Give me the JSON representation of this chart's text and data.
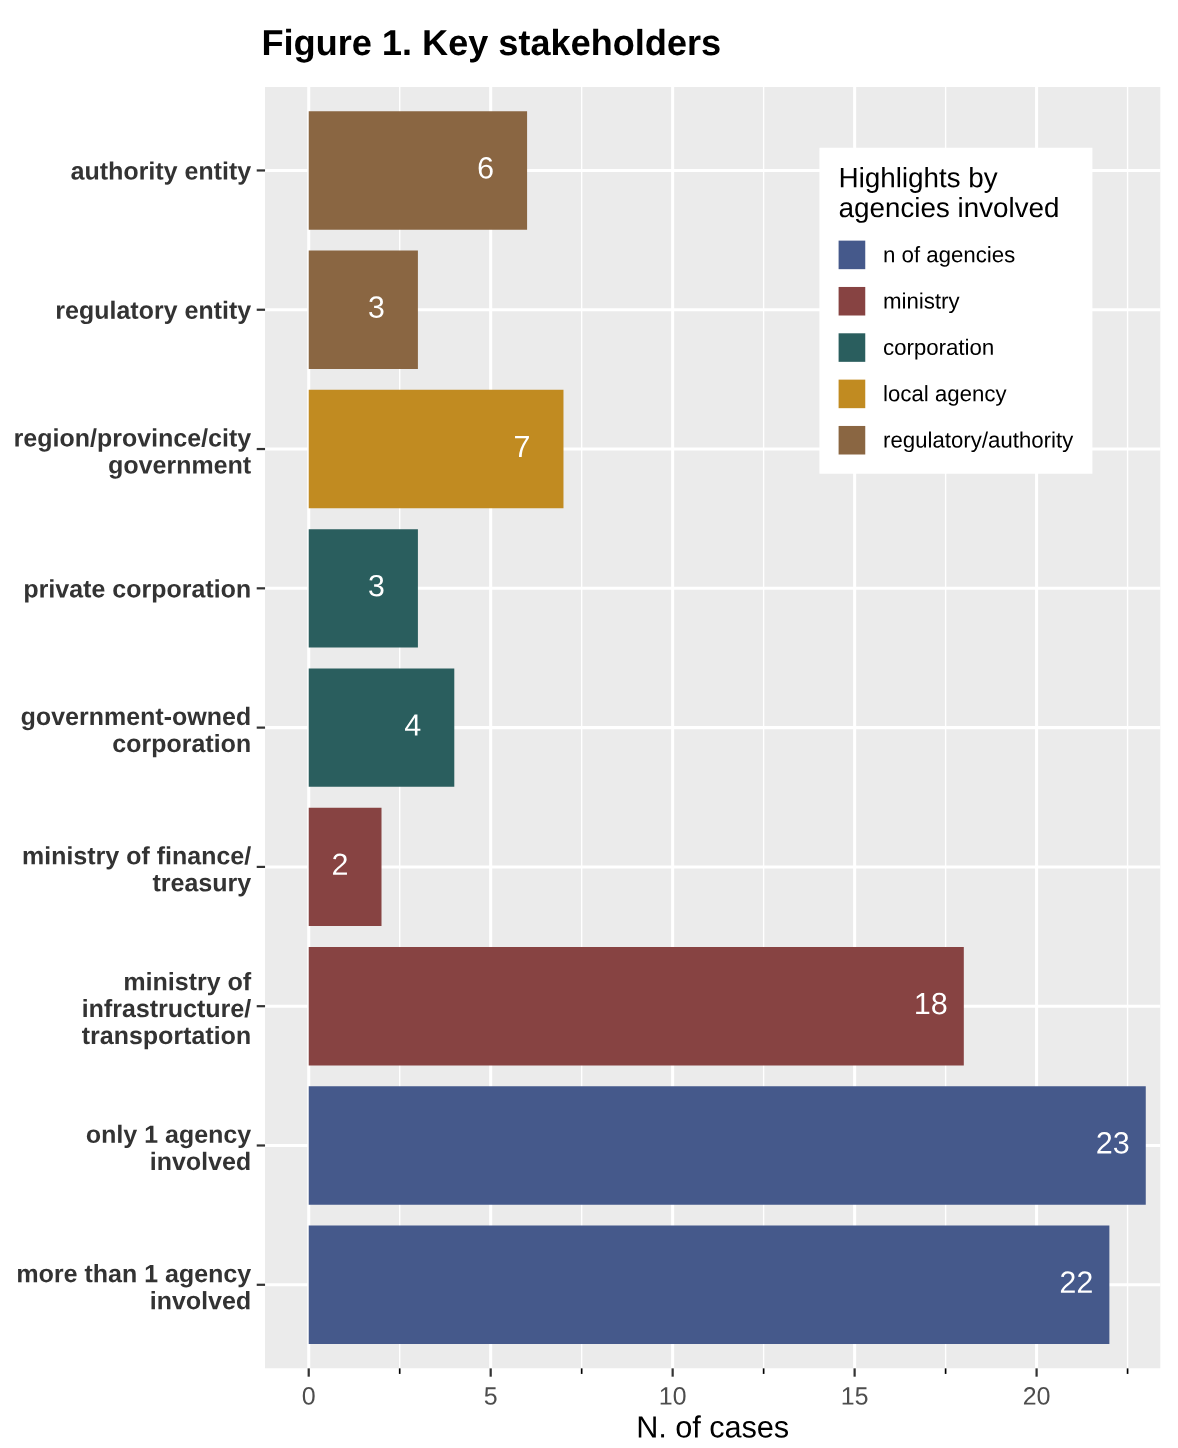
{
  "chart_data": {
    "type": "bar",
    "orientation": "horizontal",
    "title": "Figure 1. Key stakeholders",
    "xlabel": "N. of cases",
    "categories": [
      "authority entity",
      "regulatory entity",
      "region/province/city\ngovernment",
      "private corporation",
      "government-owned\ncorporation",
      "ministry of finance/\ntreasury",
      "ministry of\ninfrastructure/\ntransportation",
      "only 1 agency\ninvolved",
      "more than 1 agency\ninvolved"
    ],
    "series": [
      {
        "name": "n of agencies",
        "color": "#45598b",
        "values": [
          null,
          null,
          null,
          null,
          null,
          null,
          null,
          23,
          22
        ]
      },
      {
        "name": "ministry",
        "color": "#874342",
        "values": [
          null,
          null,
          null,
          null,
          null,
          2,
          18,
          null,
          null
        ]
      },
      {
        "name": "corporation",
        "color": "#2a5e5e",
        "values": [
          null,
          null,
          null,
          3,
          4,
          null,
          null,
          null,
          null
        ]
      },
      {
        "name": "local agency",
        "color": "#c18b21",
        "values": [
          null,
          null,
          7,
          null,
          null,
          null,
          null,
          null,
          null
        ]
      },
      {
        "name": "regulatory/authority",
        "color": "#8a6642",
        "values": [
          6,
          3,
          null,
          null,
          null,
          null,
          null,
          null,
          null
        ]
      }
    ],
    "legend_title": "Highlights by\nagencies involved",
    "legend": "top right",
    "xlim": [
      -1.2,
      23.4
    ],
    "xticks": [
      0,
      5,
      10,
      15,
      20
    ],
    "grid": true,
    "data_labels": true
  }
}
